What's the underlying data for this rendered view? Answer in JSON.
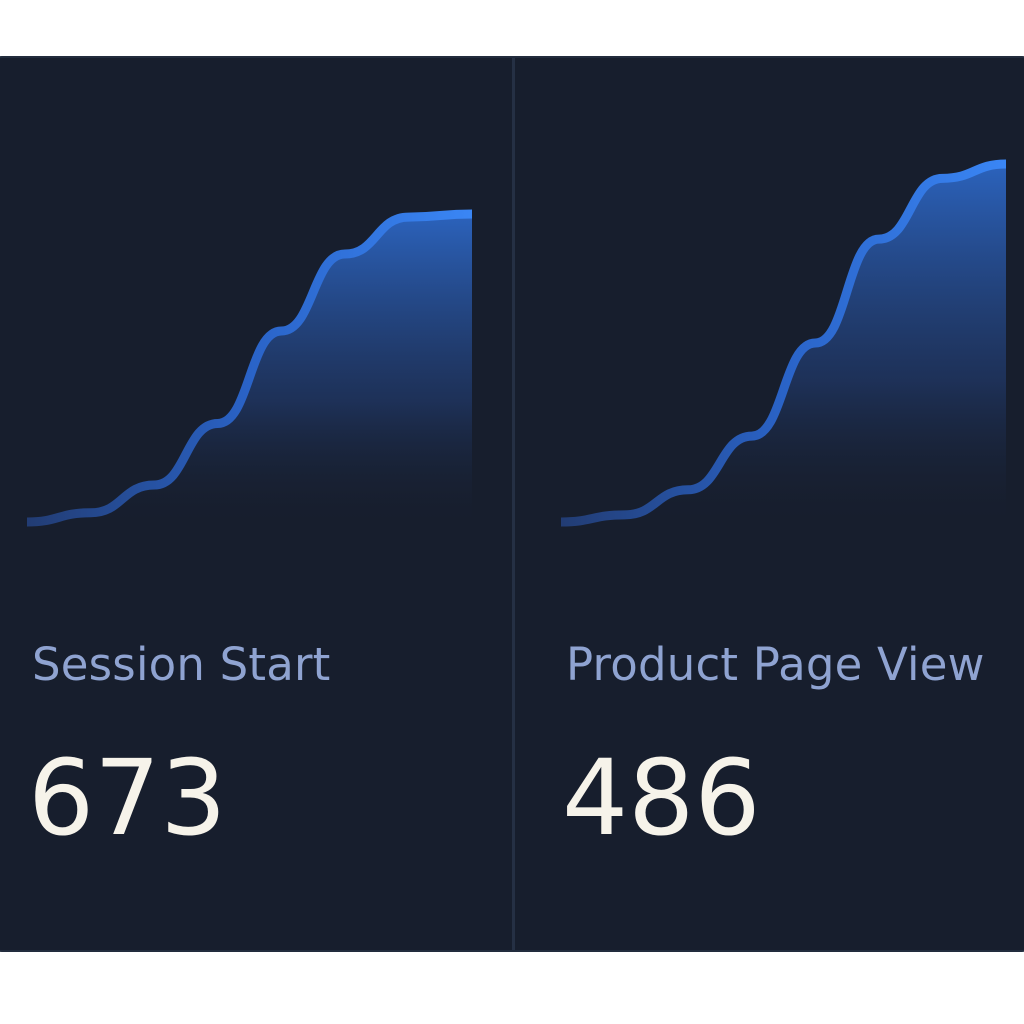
{
  "colors": {
    "background": "#171e2d",
    "label": "#8fa3d1",
    "value": "#f6f3ea",
    "accent": "#2f7ff0"
  },
  "cards": [
    {
      "label": "Session Start",
      "value": "673",
      "trend": [
        0.0,
        0.03,
        0.12,
        0.32,
        0.62,
        0.87,
        0.99,
        1.0
      ]
    },
    {
      "label": "Product Page View",
      "value": "486",
      "trend": [
        0.0,
        0.02,
        0.09,
        0.24,
        0.5,
        0.79,
        0.96,
        1.0
      ]
    }
  ]
}
